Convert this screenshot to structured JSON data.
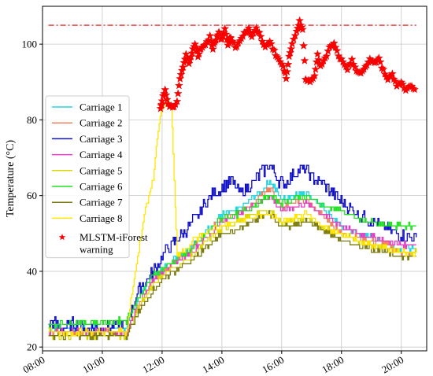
{
  "chart_data": {
    "type": "line",
    "ylabel": "Temperature (°C)",
    "xlabel": "",
    "x_ticks": [
      "08:00",
      "10:00",
      "12:00",
      "14:00",
      "16:00",
      "18:00",
      "20:00"
    ],
    "y_ticks": [
      20,
      40,
      60,
      80,
      100
    ],
    "xlim": [
      8.0,
      20.85
    ],
    "ylim": [
      19,
      110
    ],
    "grid": true,
    "legend_position": "left",
    "threshold_line": {
      "y": 105,
      "x_range": [
        8.2,
        20.5
      ],
      "color": "#e00000",
      "style": "dash-dot"
    },
    "series": [
      {
        "name": "Carriage 1",
        "color": "#22d6e0",
        "points": [
          [
            8.2,
            25
          ],
          [
            10.8,
            25
          ],
          [
            11.2,
            33
          ],
          [
            11.7,
            39
          ],
          [
            12.2,
            42
          ],
          [
            13.0,
            47
          ],
          [
            13.6,
            52
          ],
          [
            14.0,
            55
          ],
          [
            14.5,
            56
          ],
          [
            15.0,
            59
          ],
          [
            15.4,
            62
          ],
          [
            15.6,
            64
          ],
          [
            16.0,
            59
          ],
          [
            16.4,
            60
          ],
          [
            16.8,
            61
          ],
          [
            17.2,
            58
          ],
          [
            17.6,
            55
          ],
          [
            18.0,
            52
          ],
          [
            18.5,
            50
          ],
          [
            19.0,
            49
          ],
          [
            19.5,
            47
          ],
          [
            20.0,
            46
          ],
          [
            20.5,
            46
          ]
        ]
      },
      {
        "name": "Carriage 2",
        "color": "#f08060",
        "points": [
          [
            8.2,
            24
          ],
          [
            10.8,
            24
          ],
          [
            11.2,
            31
          ],
          [
            11.7,
            38
          ],
          [
            12.2,
            41
          ],
          [
            13.0,
            46
          ],
          [
            13.6,
            51
          ],
          [
            14.0,
            54
          ],
          [
            14.5,
            55
          ],
          [
            15.0,
            58
          ],
          [
            15.4,
            61
          ],
          [
            15.6,
            62
          ],
          [
            16.0,
            57
          ],
          [
            16.4,
            58
          ],
          [
            16.8,
            59
          ],
          [
            17.2,
            56
          ],
          [
            17.6,
            53
          ],
          [
            18.0,
            50
          ],
          [
            18.5,
            49
          ],
          [
            19.0,
            48
          ],
          [
            19.5,
            47
          ],
          [
            20.0,
            45
          ],
          [
            20.5,
            45
          ]
        ]
      },
      {
        "name": "Carriage 3",
        "color": "#1010c8",
        "points": [
          [
            8.2,
            25
          ],
          [
            8.3,
            27
          ],
          [
            8.6,
            25
          ],
          [
            9.0,
            26
          ],
          [
            9.5,
            25
          ],
          [
            10.0,
            25
          ],
          [
            10.5,
            26
          ],
          [
            10.8,
            26
          ],
          [
            11.2,
            35
          ],
          [
            11.7,
            40
          ],
          [
            12.0,
            44
          ],
          [
            12.3,
            47
          ],
          [
            12.8,
            51
          ],
          [
            13.2,
            55
          ],
          [
            13.6,
            60
          ],
          [
            14.0,
            62
          ],
          [
            14.3,
            64
          ],
          [
            14.6,
            61
          ],
          [
            15.0,
            63
          ],
          [
            15.3,
            66
          ],
          [
            15.6,
            68
          ],
          [
            15.9,
            64
          ],
          [
            16.1,
            63
          ],
          [
            16.4,
            66
          ],
          [
            16.8,
            67
          ],
          [
            17.0,
            65
          ],
          [
            17.4,
            63
          ],
          [
            17.8,
            60
          ],
          [
            18.2,
            57
          ],
          [
            18.6,
            55
          ],
          [
            19.0,
            53
          ],
          [
            19.4,
            52
          ],
          [
            19.8,
            50
          ],
          [
            20.2,
            49
          ],
          [
            20.5,
            49
          ]
        ]
      },
      {
        "name": "Carriage 4",
        "color": "#e040c0",
        "points": [
          [
            8.2,
            24
          ],
          [
            10.8,
            24
          ],
          [
            11.2,
            31
          ],
          [
            11.7,
            38
          ],
          [
            12.2,
            41
          ],
          [
            13.0,
            45
          ],
          [
            13.6,
            50
          ],
          [
            14.0,
            53
          ],
          [
            14.5,
            55
          ],
          [
            15.0,
            57
          ],
          [
            15.4,
            59
          ],
          [
            15.6,
            60
          ],
          [
            16.0,
            56
          ],
          [
            16.4,
            57
          ],
          [
            16.8,
            58
          ],
          [
            17.2,
            56
          ],
          [
            17.6,
            54
          ],
          [
            18.0,
            52
          ],
          [
            18.5,
            50
          ],
          [
            19.0,
            49
          ],
          [
            19.5,
            48
          ],
          [
            20.0,
            47
          ],
          [
            20.5,
            47
          ]
        ]
      },
      {
        "name": "Carriage 5",
        "color": "#d8d800",
        "points": [
          [
            8.2,
            23
          ],
          [
            10.8,
            23
          ],
          [
            11.2,
            30
          ],
          [
            11.7,
            37
          ],
          [
            12.2,
            40
          ],
          [
            13.0,
            44
          ],
          [
            13.6,
            49
          ],
          [
            14.0,
            51
          ],
          [
            14.5,
            53
          ],
          [
            15.0,
            55
          ],
          [
            15.4,
            56
          ],
          [
            15.6,
            56
          ],
          [
            16.0,
            53
          ],
          [
            16.4,
            53
          ],
          [
            16.8,
            54
          ],
          [
            17.2,
            52
          ],
          [
            17.6,
            51
          ],
          [
            18.0,
            50
          ],
          [
            18.5,
            48
          ],
          [
            19.0,
            47
          ],
          [
            19.5,
            46
          ],
          [
            20.0,
            45
          ],
          [
            20.5,
            45
          ]
        ]
      },
      {
        "name": "Carriage 6",
        "color": "#22e022",
        "points": [
          [
            8.2,
            26
          ],
          [
            10.8,
            27
          ],
          [
            11.2,
            33
          ],
          [
            11.7,
            39
          ],
          [
            12.2,
            42
          ],
          [
            13.0,
            46
          ],
          [
            13.6,
            51
          ],
          [
            14.0,
            54
          ],
          [
            14.5,
            55
          ],
          [
            15.0,
            57
          ],
          [
            15.4,
            59
          ],
          [
            15.6,
            60
          ],
          [
            16.0,
            58
          ],
          [
            16.4,
            59
          ],
          [
            16.8,
            60
          ],
          [
            17.2,
            58
          ],
          [
            17.6,
            57
          ],
          [
            18.0,
            56
          ],
          [
            18.5,
            54
          ],
          [
            19.0,
            53
          ],
          [
            19.5,
            52
          ],
          [
            20.0,
            52
          ],
          [
            20.5,
            52
          ]
        ]
      },
      {
        "name": "Carriage 7",
        "color": "#7a7a10",
        "points": [
          [
            8.2,
            23
          ],
          [
            10.8,
            23
          ],
          [
            11.2,
            29
          ],
          [
            11.7,
            35
          ],
          [
            12.2,
            39
          ],
          [
            13.0,
            43
          ],
          [
            13.6,
            47
          ],
          [
            14.0,
            50
          ],
          [
            14.5,
            51
          ],
          [
            15.0,
            53
          ],
          [
            15.4,
            55
          ],
          [
            15.6,
            55
          ],
          [
            16.0,
            52
          ],
          [
            16.4,
            52
          ],
          [
            16.8,
            53
          ],
          [
            17.2,
            52
          ],
          [
            17.6,
            50
          ],
          [
            18.0,
            48
          ],
          [
            18.5,
            47
          ],
          [
            19.0,
            46
          ],
          [
            19.5,
            45
          ],
          [
            20.0,
            44
          ],
          [
            20.5,
            44
          ]
        ]
      },
      {
        "name": "Carriage 8",
        "color": "#ffe500",
        "points": [
          [
            8.2,
            24
          ],
          [
            10.8,
            24
          ],
          [
            11.1,
            40
          ],
          [
            11.4,
            55
          ],
          [
            11.7,
            65
          ],
          [
            11.9,
            80
          ],
          [
            12.1,
            85
          ],
          [
            12.3,
            84
          ],
          [
            12.5,
            44
          ],
          [
            13.0,
            48
          ],
          [
            13.6,
            51
          ],
          [
            14.0,
            52
          ],
          [
            14.5,
            53
          ],
          [
            15.0,
            54
          ],
          [
            15.4,
            55
          ],
          [
            15.6,
            55
          ],
          [
            16.0,
            53
          ],
          [
            16.4,
            54
          ],
          [
            16.8,
            55
          ],
          [
            17.2,
            53
          ],
          [
            17.6,
            51
          ],
          [
            18.0,
            50
          ],
          [
            18.5,
            48
          ],
          [
            19.0,
            47
          ],
          [
            19.5,
            46
          ],
          [
            20.0,
            45
          ],
          [
            20.5,
            45
          ]
        ]
      }
    ],
    "warning_series": {
      "name": "MLSTM-iForest warning",
      "color": "#ff0000",
      "marker": "star",
      "points": [
        [
          11.95,
          83
        ],
        [
          12.0,
          85
        ],
        [
          12.1,
          88
        ],
        [
          12.2,
          84
        ],
        [
          12.35,
          83
        ],
        [
          12.5,
          85
        ],
        [
          12.6,
          91
        ],
        [
          12.7,
          94
        ],
        [
          12.8,
          97
        ],
        [
          12.9,
          95
        ],
        [
          13.0,
          98
        ],
        [
          13.1,
          100
        ],
        [
          13.2,
          97
        ],
        [
          13.3,
          99
        ],
        [
          13.45,
          100
        ],
        [
          13.6,
          102
        ],
        [
          13.7,
          99
        ],
        [
          13.8,
          101
        ],
        [
          13.9,
          103
        ],
        [
          14.0,
          101
        ],
        [
          14.1,
          104
        ],
        [
          14.2,
          100
        ],
        [
          14.3,
          102
        ],
        [
          14.45,
          99
        ],
        [
          14.6,
          101
        ],
        [
          14.75,
          103
        ],
        [
          14.9,
          104
        ],
        [
          15.0,
          102
        ],
        [
          15.15,
          104
        ],
        [
          15.3,
          102
        ],
        [
          15.45,
          99
        ],
        [
          15.6,
          101
        ],
        [
          15.75,
          98
        ],
        [
          15.9,
          96
        ],
        [
          16.05,
          94
        ],
        [
          16.15,
          91
        ],
        [
          16.25,
          97
        ],
        [
          16.35,
          100
        ],
        [
          16.5,
          103
        ],
        [
          16.6,
          106
        ],
        [
          16.7,
          104
        ],
        [
          16.8,
          91
        ],
        [
          16.95,
          90
        ],
        [
          17.1,
          92
        ],
        [
          17.2,
          97
        ],
        [
          17.3,
          94
        ],
        [
          17.45,
          96
        ],
        [
          17.6,
          99
        ],
        [
          17.75,
          100
        ],
        [
          17.9,
          97
        ],
        [
          18.05,
          95
        ],
        [
          18.2,
          93
        ],
        [
          18.35,
          96
        ],
        [
          18.5,
          93
        ],
        [
          18.65,
          92
        ],
        [
          18.8,
          94
        ],
        [
          18.95,
          96
        ],
        [
          19.1,
          95
        ],
        [
          19.25,
          96
        ],
        [
          19.4,
          93
        ],
        [
          19.55,
          91
        ],
        [
          19.7,
          92
        ],
        [
          19.85,
          89
        ],
        [
          20.0,
          90
        ],
        [
          20.15,
          88
        ],
        [
          20.3,
          89
        ],
        [
          20.45,
          88
        ]
      ]
    }
  }
}
